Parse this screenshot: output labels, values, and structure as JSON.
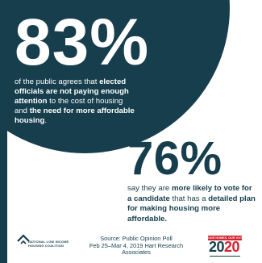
{
  "stat1": {
    "number": "83%",
    "t1": "of the public agrees that ",
    "b1": "elected officials are not paying enough attention",
    "t2": " to the cost of housing and ",
    "b2": "the need for more affordable housing",
    "t3": "."
  },
  "stat2": {
    "number": "76%",
    "t1": "say they are ",
    "b1": "more likely to vote for a candidate",
    "t2": " that has a ",
    "b2": "detailed plan for making housing more affordable."
  },
  "footer": {
    "org_line1": "NATIONAL LOW INCOME",
    "org_line2": "HOUSING COALITION",
    "source_line1": "Source: Public Opinion Poll",
    "source_line2": "Feb 25–Mar 4, 2019 Hart Research Associates",
    "campaign_banner": "OUR HOMES, OUR VOTES",
    "campaign_year_a": "20",
    "campaign_year_b": "20"
  },
  "colors": {
    "navy": "#163e4d",
    "red": "#d3232f",
    "white": "#ffffff"
  }
}
